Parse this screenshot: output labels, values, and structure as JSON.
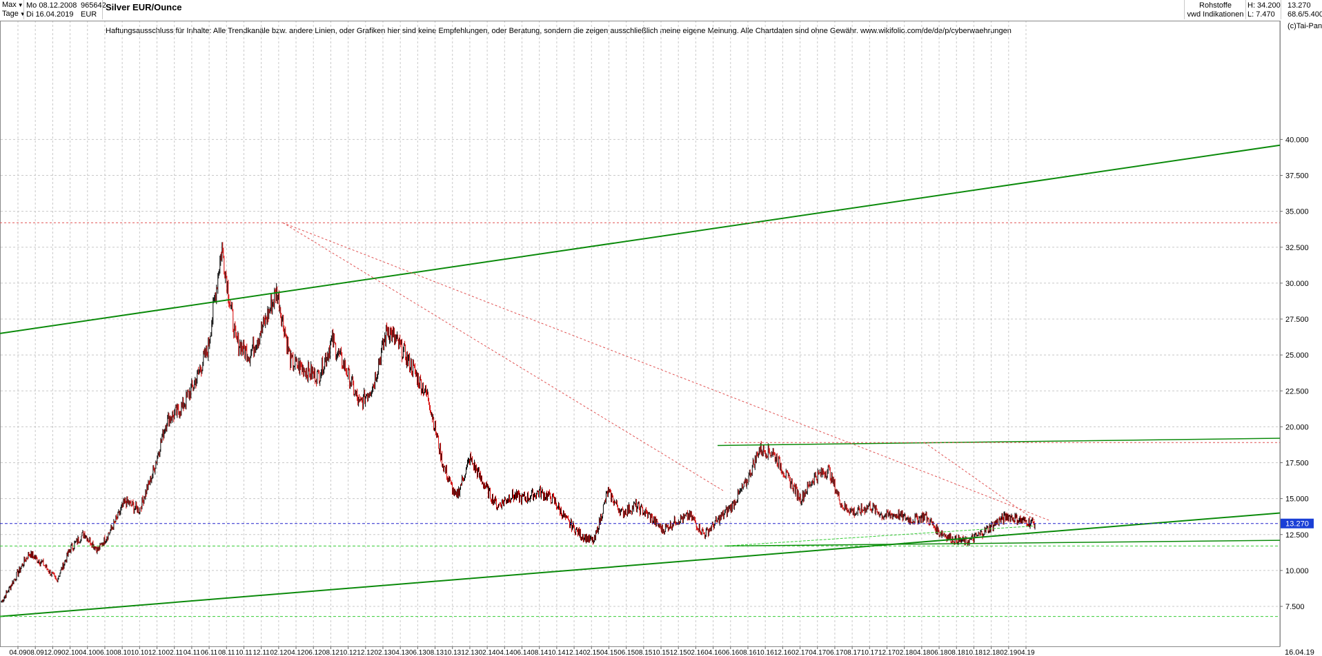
{
  "header": {
    "range_select": "Max",
    "interval_select": "Tage",
    "start_date": "Mo 08.12.2008",
    "end_date": "Di 16.04.2019",
    "wkn": "965642",
    "currency": "EUR",
    "instrument": "Silver EUR/Ounce",
    "category": "Rohstoffe",
    "source": "vwd Indikationen",
    "high": "H: 34.200",
    "low": "L: 7.470",
    "last": "13.270",
    "ratio": "68.6/5.400",
    "credit": "(c)Tai-Pan"
  },
  "disclaimer": "Haftungsausschluss für Inhalte: Alle Trendkanäle bzw. andere Linien, oder Grafiken hier sind keine Empfehlungen, oder Beratung, sondern die zeigen ausschließlich meine eigene Meinung. Alle Chartdaten sind ohne Gewähr.  www.wikifolio.com/de/de/p/cyberwaehrungen",
  "colors": {
    "up_candle": "#000000",
    "down_candle": "#d40000",
    "trend_line": "#0a8a0a",
    "support_line": "#33cc33",
    "resistance_dotted": "#e05050",
    "last_price_line": "#2020cc",
    "last_price_label_bg": "#1a3fd6",
    "grid": "#c8c8c8"
  },
  "chart_data": {
    "type": "line",
    "title": "Silver EUR/Ounce",
    "xlabel": "",
    "ylabel": "",
    "ylim": [
      6.5,
      41
    ],
    "y_ticks": [
      "7.500",
      "10.000",
      "12.500",
      "15.000",
      "17.500",
      "20.000",
      "22.500",
      "25.000",
      "27.500",
      "30.000",
      "32.500",
      "35.000",
      "37.500",
      "40.000"
    ],
    "y_tick_values": [
      7.5,
      10,
      12.5,
      15,
      17.5,
      20,
      22.5,
      25,
      27.5,
      30,
      32.5,
      35,
      37.5,
      40
    ],
    "x_ticks": [
      "04.09",
      "08.09",
      "12.09",
      "02.10",
      "04.10",
      "06.10",
      "08.10",
      "10.10",
      "12.10",
      "02.11",
      "04.11",
      "06.11",
      "08.11",
      "10.11",
      "12.11",
      "02.12",
      "04.12",
      "06.12",
      "08.12",
      "10.12",
      "12.12",
      "02.13",
      "04.13",
      "06.13",
      "08.13",
      "10.13",
      "12.13",
      "02.14",
      "04.14",
      "06.14",
      "08.14",
      "10.14",
      "12.14",
      "02.15",
      "04.15",
      "06.15",
      "08.15",
      "10.15",
      "12.15",
      "02.16",
      "04.16",
      "06.16",
      "08.16",
      "10.16",
      "12.16",
      "02.17",
      "04.17",
      "06.17",
      "08.17",
      "10.17",
      "12.17",
      "02.18",
      "04.18",
      "06.18",
      "08.18",
      "10.18",
      "12.18",
      "02.19",
      "04.19"
    ],
    "x_last_label": "16.04.19",
    "grid": true,
    "series": [
      {
        "x": [
          "12.2008",
          "02.2009",
          "04.2009",
          "06.2009",
          "08.2009",
          "10.2009",
          "12.2009",
          "02.2010",
          "04.2010",
          "06.2010",
          "08.2010",
          "10.2010",
          "12.2010",
          "01.2011",
          "02.2011",
          "03.2011",
          "04.2011",
          "05.2011",
          "06.2011",
          "07.2011",
          "08.2011",
          "09.2011",
          "10.2011",
          "12.2011",
          "02.2012",
          "04.2012",
          "06.2012",
          "08.2012",
          "10.2012",
          "12.2012",
          "02.2013",
          "04.2013",
          "05.2013",
          "07.2013",
          "08.2013",
          "10.2013",
          "12.2013",
          "02.2014",
          "04.2014",
          "06.2014",
          "07.2014",
          "09.2014",
          "11.2014",
          "12.2014",
          "01.2015",
          "02.2015",
          "04.2015",
          "06.2015",
          "07.2015",
          "09.2015",
          "10.2015",
          "12.2015",
          "02.2016",
          "04.2016",
          "05.2016",
          "07.2016",
          "08.2016",
          "10.2016",
          "12.2016",
          "02.2017",
          "04.2017",
          "06.2017",
          "07.2017",
          "09.2017",
          "11.2017",
          "01.2018",
          "03.2018",
          "05.2018",
          "07.2018",
          "08.2018",
          "09.2018",
          "11.2018",
          "01.2019",
          "02.2019",
          "03.2019",
          "04.2019"
        ],
        "values": [
          7.8,
          9.5,
          11.2,
          10.5,
          9.3,
          11.5,
          12.6,
          11.4,
          12.9,
          14.8,
          14.2,
          16.8,
          20.5,
          21.2,
          23.0,
          25.5,
          32.5,
          26.0,
          25.0,
          27.0,
          29.5,
          24.5,
          24.0,
          23.5,
          26.0,
          24.0,
          21.5,
          23.0,
          26.8,
          25.5,
          23.8,
          22.0,
          17.5,
          15.0,
          17.8,
          16.0,
          14.5,
          15.2,
          15.0,
          15.5,
          15.0,
          13.5,
          12.5,
          12.0,
          15.5,
          14.0,
          14.5,
          13.8,
          12.8,
          13.5,
          13.8,
          12.5,
          13.5,
          14.5,
          16.0,
          18.5,
          18.2,
          16.5,
          15.0,
          16.5,
          17.0,
          14.5,
          14.0,
          14.5,
          13.8,
          13.9,
          13.5,
          13.8,
          12.7,
          12.2,
          12.0,
          12.5,
          13.2,
          13.8,
          13.5,
          13.27
        ]
      }
    ]
  },
  "last_price_label": "13.270"
}
